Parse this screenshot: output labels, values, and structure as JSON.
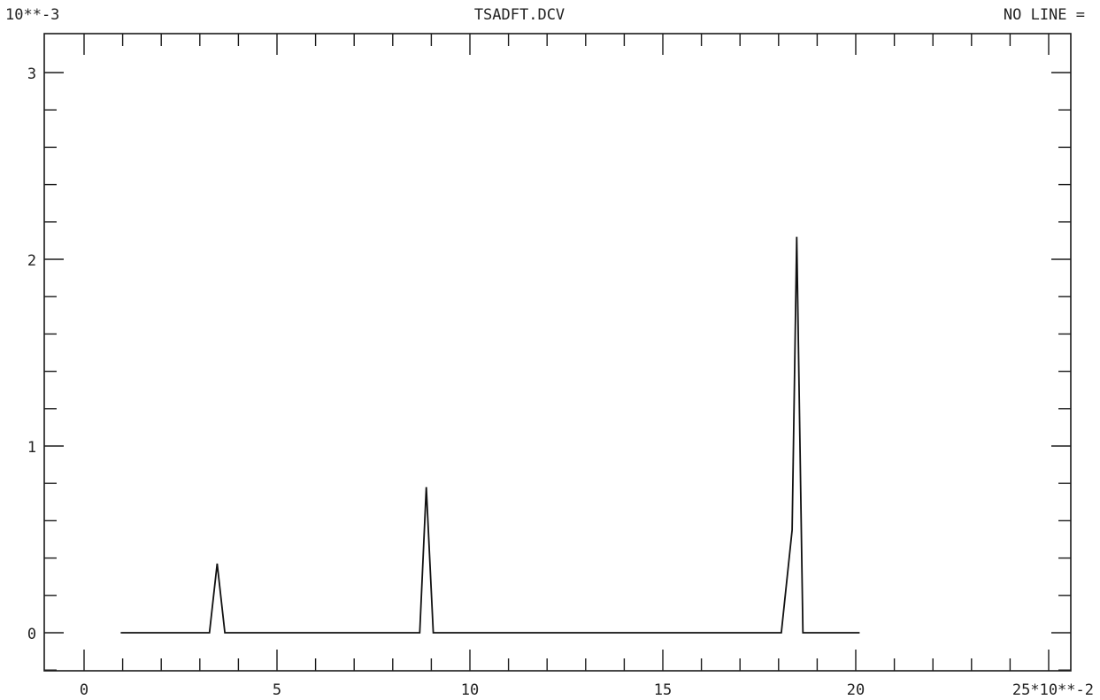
{
  "header": {
    "left": "10**-3",
    "center": "TSADFT.DCV",
    "right": "NO LINE ="
  },
  "chart_data": {
    "type": "line",
    "title": "TSADFT.DCV",
    "x_multiplier_label": "25*10**-2",
    "y_multiplier_label": "10**-3",
    "xlim": [
      0,
      25
    ],
    "ylim": [
      -0.2,
      3.2
    ],
    "x_tick_labels": [
      "0",
      "5",
      "10",
      "15",
      "20",
      "25*10**-2"
    ],
    "x_tick_values": [
      0,
      5,
      10,
      15,
      20,
      25
    ],
    "y_tick_labels": [
      "0",
      "1",
      "2",
      "3"
    ],
    "y_tick_values": [
      0,
      1,
      2,
      3
    ],
    "x_minor_step": 1,
    "y_minor_step": 0.2,
    "grid": false,
    "series": [
      {
        "x": [
          0.95,
          3.25,
          3.45,
          3.65,
          8.7,
          8.87,
          9.05,
          18.07,
          18.35,
          18.47,
          18.63,
          20.1
        ],
        "y": [
          0,
          0,
          0.37,
          0,
          0,
          0.78,
          0,
          0,
          0.55,
          2.12,
          0,
          0
        ]
      }
    ]
  }
}
